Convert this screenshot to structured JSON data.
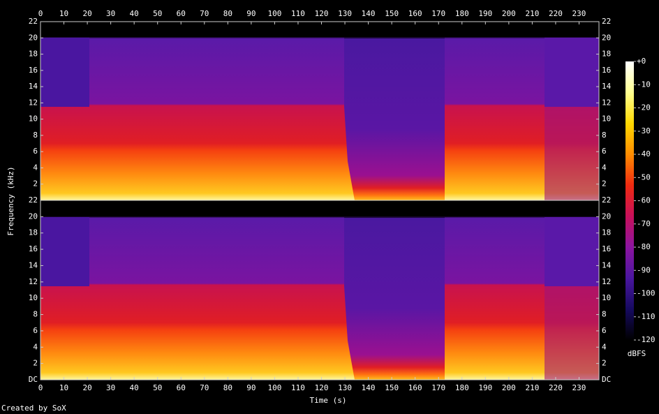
{
  "chart_data": {
    "type": "spectrogram",
    "xlabel": "Time (s)",
    "ylabel": "Frequency (kHz)",
    "xlim": [
      0,
      238.5
    ],
    "xticks": [
      0,
      10,
      20,
      30,
      40,
      50,
      60,
      70,
      80,
      90,
      100,
      110,
      120,
      130,
      140,
      150,
      160,
      170,
      180,
      190,
      200,
      210,
      220,
      230
    ],
    "channels": [
      {
        "ylim": [
          0,
          22
        ],
        "yticks": [
          2,
          4,
          6,
          8,
          10,
          12,
          14,
          16,
          18,
          20,
          22
        ]
      },
      {
        "ylim": [
          0,
          22
        ],
        "yticks": [
          {
            "value": 0,
            "label": "DC"
          },
          2,
          4,
          6,
          8,
          10,
          12,
          14,
          16,
          18,
          20,
          22
        ]
      }
    ],
    "colorbar": {
      "label": "dBFS",
      "lim": [
        -120,
        0
      ],
      "ticks": [
        {
          "value": 0,
          "label": "+0"
        },
        -10,
        -20,
        -30,
        -40,
        -50,
        -60,
        -70,
        -80,
        -90,
        -100,
        -110,
        -120
      ],
      "colors": [
        "#ffffff",
        "#ffff90",
        "#ffd800",
        "#ff8c00",
        "#f02a10",
        "#c8105a",
        "#8c14a0",
        "#4a16a0",
        "#160a60",
        "#000000"
      ]
    }
  },
  "footer": "Created by SoX"
}
